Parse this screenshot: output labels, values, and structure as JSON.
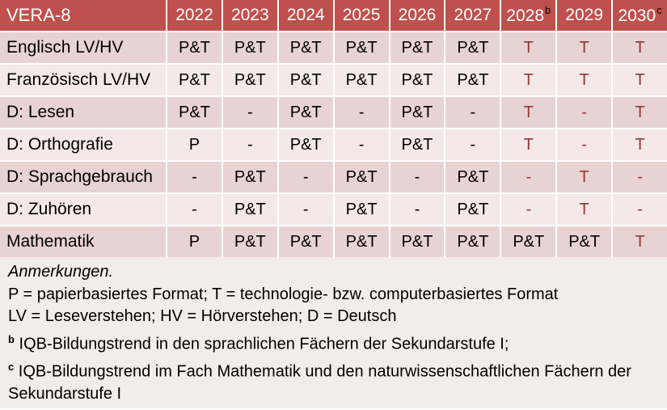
{
  "colors": {
    "header_bg": "#C0504D",
    "header_text": "#FFFFFF",
    "footnote_marker": "#000000",
    "band_odd": "#E8D3D3",
    "band_even": "#F4E9E8",
    "notes_bg": "#F4ECEA",
    "highlight_text": "#943634",
    "body_text": "#000000",
    "grid_line": "#FFFFFF"
  },
  "table": {
    "header": [
      {
        "label": "VERA-8"
      },
      {
        "label": "2022"
      },
      {
        "label": "2023"
      },
      {
        "label": "2024"
      },
      {
        "label": "2025"
      },
      {
        "label": "2026"
      },
      {
        "label": "2027"
      },
      {
        "label": "2028",
        "superscript": "b"
      },
      {
        "label": "2029"
      },
      {
        "label": "2030",
        "superscript": "c"
      }
    ],
    "rows": [
      {
        "label": "Englisch LV/HV",
        "cells": [
          {
            "text": "P&T",
            "red": false
          },
          {
            "text": "P&T",
            "red": false
          },
          {
            "text": "P&T",
            "red": false
          },
          {
            "text": "P&T",
            "red": false
          },
          {
            "text": "P&T",
            "red": false
          },
          {
            "text": "P&T",
            "red": false
          },
          {
            "text": "T",
            "red": true
          },
          {
            "text": "T",
            "red": true
          },
          {
            "text": "T",
            "red": true
          }
        ]
      },
      {
        "label": "Französisch LV/HV",
        "cells": [
          {
            "text": "P&T",
            "red": false
          },
          {
            "text": "P&T",
            "red": false
          },
          {
            "text": "P&T",
            "red": false
          },
          {
            "text": "P&T",
            "red": false
          },
          {
            "text": "P&T",
            "red": false
          },
          {
            "text": "P&T",
            "red": false
          },
          {
            "text": "T",
            "red": true
          },
          {
            "text": "T",
            "red": true
          },
          {
            "text": "T",
            "red": true
          }
        ]
      },
      {
        "label": "D: Lesen",
        "cells": [
          {
            "text": "P&T",
            "red": false
          },
          {
            "text": "-",
            "red": false
          },
          {
            "text": "P&T",
            "red": false
          },
          {
            "text": "-",
            "red": false
          },
          {
            "text": "P&T",
            "red": false
          },
          {
            "text": "-",
            "red": false
          },
          {
            "text": "T",
            "red": true
          },
          {
            "text": "-",
            "red": true
          },
          {
            "text": "T",
            "red": true
          }
        ]
      },
      {
        "label": "D: Orthografie",
        "cells": [
          {
            "text": "P",
            "red": false
          },
          {
            "text": "-",
            "red": false
          },
          {
            "text": "P&T",
            "red": false
          },
          {
            "text": "-",
            "red": false
          },
          {
            "text": "P&T",
            "red": false
          },
          {
            "text": "-",
            "red": false
          },
          {
            "text": "T",
            "red": true
          },
          {
            "text": "-",
            "red": true
          },
          {
            "text": "T",
            "red": true
          }
        ]
      },
      {
        "label": "D: Sprachgebrauch",
        "cells": [
          {
            "text": "-",
            "red": false
          },
          {
            "text": "P&T",
            "red": false
          },
          {
            "text": "-",
            "red": false
          },
          {
            "text": "P&T",
            "red": false
          },
          {
            "text": "-",
            "red": false
          },
          {
            "text": "P&T",
            "red": false
          },
          {
            "text": "-",
            "red": true
          },
          {
            "text": "T",
            "red": true
          },
          {
            "text": "-",
            "red": true
          }
        ]
      },
      {
        "label": "D: Zuhören",
        "cells": [
          {
            "text": "-",
            "red": false
          },
          {
            "text": "P&T",
            "red": false
          },
          {
            "text": "-",
            "red": false
          },
          {
            "text": "P&T",
            "red": false
          },
          {
            "text": "-",
            "red": false
          },
          {
            "text": "P&T",
            "red": false
          },
          {
            "text": "-",
            "red": true
          },
          {
            "text": "T",
            "red": true
          },
          {
            "text": "-",
            "red": true
          }
        ]
      },
      {
        "label": "Mathematik",
        "cells": [
          {
            "text": "P",
            "red": false
          },
          {
            "text": "P&T",
            "red": false
          },
          {
            "text": "P&T",
            "red": false
          },
          {
            "text": "P&T",
            "red": false
          },
          {
            "text": "P&T",
            "red": false
          },
          {
            "text": "P&T",
            "red": false
          },
          {
            "text": "P&T",
            "red": false
          },
          {
            "text": "P&T",
            "red": false
          },
          {
            "text": "T",
            "red": true
          }
        ]
      }
    ]
  },
  "notes": {
    "title": "Anmerkungen.",
    "lines": [
      {
        "text": "P = papierbasiertes Format; T = technologie- bzw. computerbasiertes Format"
      },
      {
        "text": "LV = Leseverstehen; HV = Hörverstehen; D = Deutsch"
      },
      {
        "sup": "b",
        "text": "IQB-Bildungstrend in den sprachlichen Fächern der Sekundarstufe I;"
      },
      {
        "sup": "c",
        "text": "IQB-Bildungstrend im Fach Mathematik und den naturwissenschaftlichen Fächern der Sekundarstufe I"
      }
    ]
  }
}
